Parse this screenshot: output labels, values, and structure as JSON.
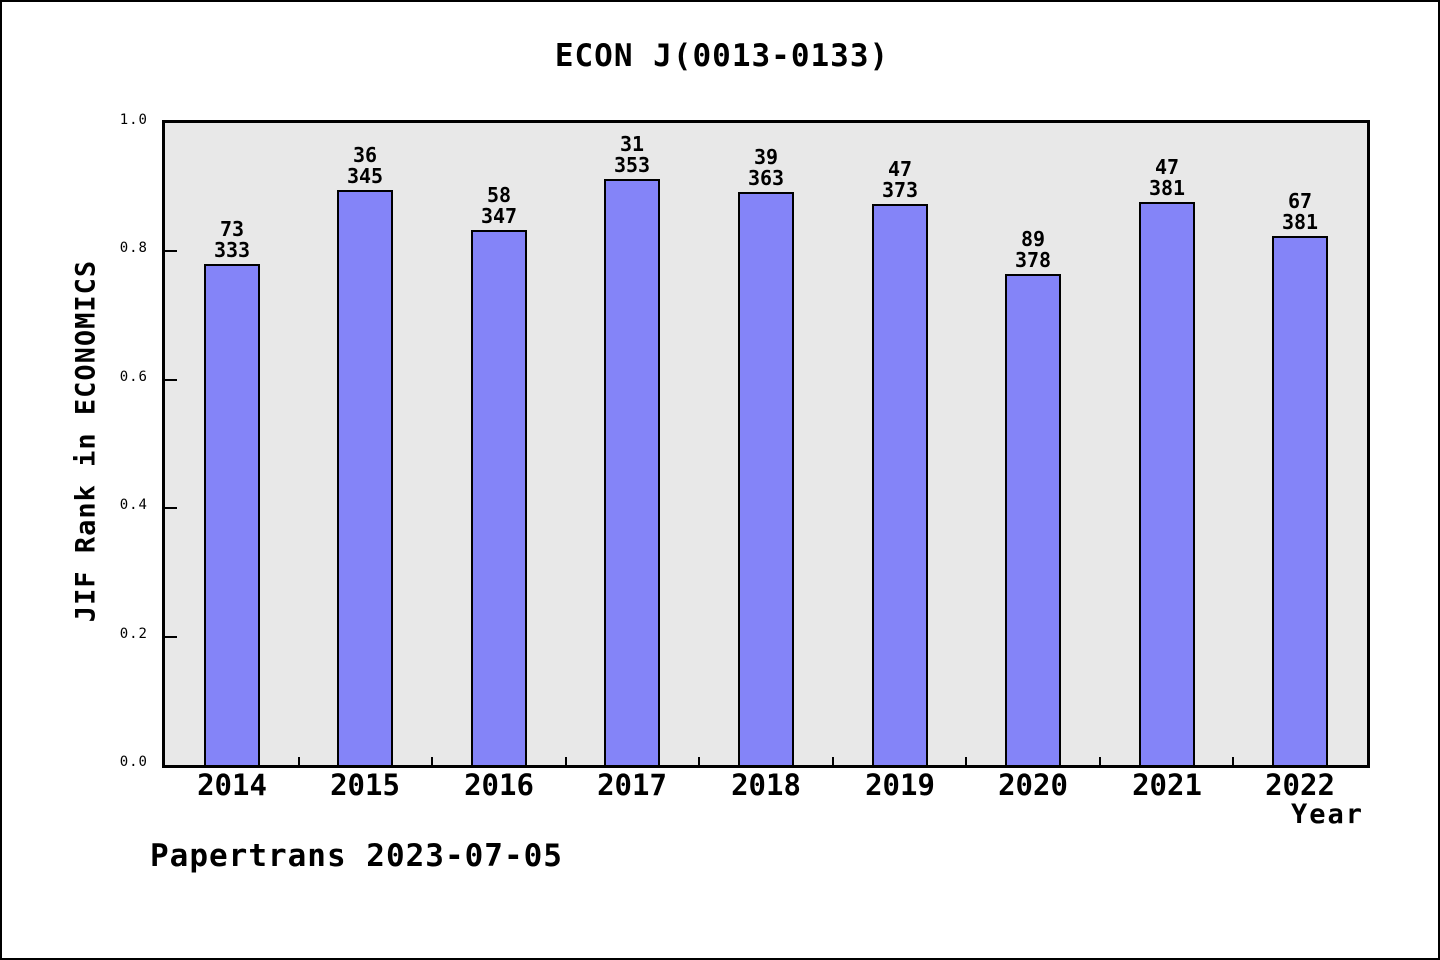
{
  "figure": {
    "title": "ECON J(0013-0133)",
    "footer": "Papertrans 2023-07-05"
  },
  "colors": {
    "bar_fill": "#8484f8",
    "bar_border": "#000000",
    "plot_background": "#e8e8e8",
    "page_background": "#ffffff",
    "text": "#000000"
  },
  "chart_data": {
    "type": "bar",
    "title": "ECON J(0013-0133)",
    "xlabel": "Year",
    "ylabel": "JIF Rank in ECONOMICS",
    "ylim": [
      0.0,
      1.0
    ],
    "ytick_values": [
      0.0,
      0.2,
      0.4,
      0.6,
      0.8,
      1.0
    ],
    "ytick_labels": [
      "0.0",
      "0.2",
      "0.4",
      "0.6",
      "0.8",
      "1.0"
    ],
    "grid": false,
    "legend": false,
    "categories": [
      "2014",
      "2015",
      "2016",
      "2017",
      "2018",
      "2019",
      "2020",
      "2021",
      "2022"
    ],
    "bars": [
      {
        "year": "2014",
        "rank": 73,
        "total": 333,
        "value": 0.781
      },
      {
        "year": "2015",
        "rank": 36,
        "total": 345,
        "value": 0.896
      },
      {
        "year": "2016",
        "rank": 58,
        "total": 347,
        "value": 0.833
      },
      {
        "year": "2017",
        "rank": 31,
        "total": 353,
        "value": 0.912
      },
      {
        "year": "2018",
        "rank": 39,
        "total": 363,
        "value": 0.893
      },
      {
        "year": "2019",
        "rank": 47,
        "total": 373,
        "value": 0.874
      },
      {
        "year": "2020",
        "rank": 89,
        "total": 378,
        "value": 0.765
      },
      {
        "year": "2021",
        "rank": 47,
        "total": 381,
        "value": 0.877
      },
      {
        "year": "2022",
        "rank": 67,
        "total": 381,
        "value": 0.824
      }
    ],
    "bar_label_format": "rank over total, two lines above each bar",
    "value_formula": "value = 1 - rank/total"
  }
}
